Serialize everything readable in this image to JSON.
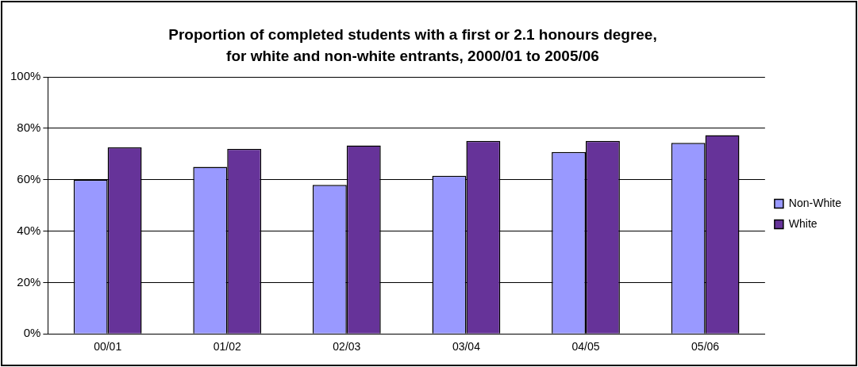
{
  "chart_data": {
    "type": "bar",
    "title": "Proportion of completed students with a first or 2.1 honours degree, for white and non-white entrants, 2000/01 to 2005/06",
    "categories": [
      "00/01",
      "01/02",
      "02/03",
      "03/04",
      "04/05",
      "05/06"
    ],
    "series": [
      {
        "name": "Non-White",
        "color": "#9999ff",
        "values": [
          60,
          65,
          58,
          61.5,
          70.8,
          74.3
        ]
      },
      {
        "name": "White",
        "color": "#663399",
        "values": [
          72.6,
          72,
          73.3,
          75.1,
          75.1,
          77.3
        ]
      }
    ],
    "ylim": [
      0,
      100
    ],
    "yticks": [
      {
        "value": 0,
        "label": "0%"
      },
      {
        "value": 20,
        "label": "20%"
      },
      {
        "value": 40,
        "label": "40%"
      },
      {
        "value": 60,
        "label": "60%"
      },
      {
        "value": 80,
        "label": "80%"
      },
      {
        "value": 100,
        "label": "100%"
      }
    ],
    "grid": "y",
    "legend": "right"
  }
}
